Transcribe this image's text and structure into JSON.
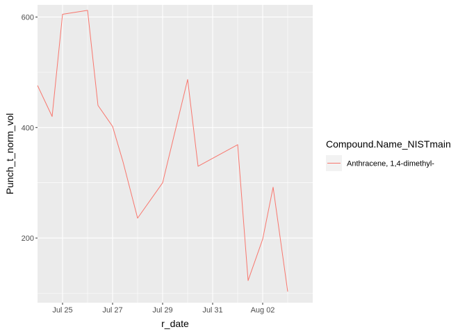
{
  "chart_data": {
    "type": "line",
    "xlabel": "r_date",
    "ylabel": "Punch_t_norm_vol",
    "x_ticks": [
      "Jul 25",
      "Jul 27",
      "Jul 29",
      "Jul 31",
      "Aug 02"
    ],
    "x_tick_dates": [
      "2020-07-25",
      "2020-07-27",
      "2020-07-29",
      "2020-07-31",
      "2020-08-02"
    ],
    "y_ticks": [
      200,
      400,
      600
    ],
    "xlim": [
      "2020-07-24",
      "2020-08-04"
    ],
    "ylim": [
      83,
      622
    ],
    "grid": true,
    "legend_position": "right",
    "legend_title": "Compound.Name_NISTmain",
    "series": [
      {
        "name": "Anthracene, 1,4-dimethyl-",
        "color": "#F8766D",
        "points": [
          {
            "x": "2020-07-24",
            "y": 476
          },
          {
            "x": "2020-07-24T14:00",
            "y": 420
          },
          {
            "x": "2020-07-25",
            "y": 605
          },
          {
            "x": "2020-07-26",
            "y": 612
          },
          {
            "x": "2020-07-26T10:00",
            "y": 440
          },
          {
            "x": "2020-07-27",
            "y": 402
          },
          {
            "x": "2020-07-27T10:00",
            "y": 338
          },
          {
            "x": "2020-07-28",
            "y": 236
          },
          {
            "x": "2020-07-29",
            "y": 300
          },
          {
            "x": "2020-07-30",
            "y": 487
          },
          {
            "x": "2020-07-30T10:00",
            "y": 330
          },
          {
            "x": "2020-08-01",
            "y": 369
          },
          {
            "x": "2020-08-01T10:00",
            "y": 123
          },
          {
            "x": "2020-08-02",
            "y": 198
          },
          {
            "x": "2020-08-02T10:00",
            "y": 292
          },
          {
            "x": "2020-08-03",
            "y": 103
          }
        ]
      }
    ]
  }
}
